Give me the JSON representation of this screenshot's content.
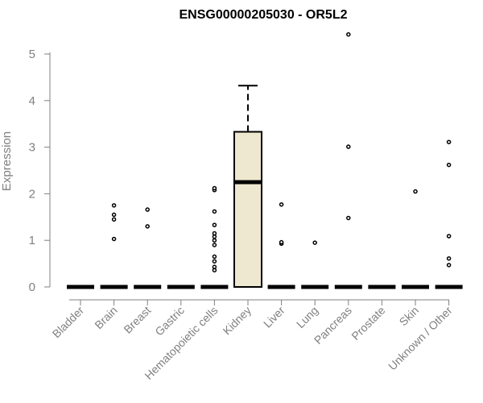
{
  "chart_data": {
    "type": "box",
    "title": "ENSG00000205030 - OR5L2",
    "xlabel": "",
    "ylabel": "Expression",
    "ylim": [
      0,
      5.5
    ],
    "yticks": [
      "0",
      "1",
      "2",
      "3",
      "4",
      "5"
    ],
    "grid": false,
    "legend": "none",
    "box_fill": "#EFE8D0",
    "categories": [
      "Bladder",
      "Brain",
      "Breast",
      "Gastric",
      "Hematopoietic cells",
      "Kidney",
      "Liver",
      "Lung",
      "Pancreas",
      "Prostate",
      "Skin",
      "Unknown / Other"
    ],
    "boxes": [
      {
        "category": "Bladder",
        "q1": 0,
        "median": 0,
        "q3": 0,
        "whisker_low": 0,
        "whisker_high": 0,
        "outliers": []
      },
      {
        "category": "Brain",
        "q1": 0,
        "median": 0,
        "q3": 0,
        "whisker_low": 0,
        "whisker_high": 0,
        "outliers": [
          1.03,
          1.45,
          1.55,
          1.75
        ]
      },
      {
        "category": "Breast",
        "q1": 0,
        "median": 0,
        "q3": 0,
        "whisker_low": 0,
        "whisker_high": 0,
        "outliers": [
          1.3,
          1.66
        ]
      },
      {
        "category": "Gastric",
        "q1": 0,
        "median": 0,
        "q3": 0,
        "whisker_low": 0,
        "whisker_high": 0,
        "outliers": []
      },
      {
        "category": "Hematopoietic cells",
        "q1": 0,
        "median": 0,
        "q3": 0,
        "whisker_low": 0,
        "whisker_high": 0,
        "outliers": [
          0.36,
          0.43,
          0.55,
          0.65,
          0.9,
          1.0,
          1.08,
          1.15,
          1.33,
          1.62,
          2.08,
          2.12
        ]
      },
      {
        "category": "Kidney",
        "q1": 0,
        "median": 2.25,
        "q3": 3.33,
        "whisker_low": 0,
        "whisker_high": 4.32,
        "outliers": []
      },
      {
        "category": "Liver",
        "q1": 0,
        "median": 0,
        "q3": 0,
        "whisker_low": 0,
        "whisker_high": 0,
        "outliers": [
          0.93,
          0.96,
          1.77
        ]
      },
      {
        "category": "Lung",
        "q1": 0,
        "median": 0,
        "q3": 0,
        "whisker_low": 0,
        "whisker_high": 0,
        "outliers": [
          0.95
        ]
      },
      {
        "category": "Pancreas",
        "q1": 0,
        "median": 0,
        "q3": 0,
        "whisker_low": 0,
        "whisker_high": 0,
        "outliers": [
          1.48,
          3.01,
          5.42
        ]
      },
      {
        "category": "Prostate",
        "q1": 0,
        "median": 0,
        "q3": 0,
        "whisker_low": 0,
        "whisker_high": 0,
        "outliers": []
      },
      {
        "category": "Skin",
        "q1": 0,
        "median": 0,
        "q3": 0,
        "whisker_low": 0,
        "whisker_high": 0,
        "outliers": [
          2.05
        ]
      },
      {
        "category": "Unknown / Other",
        "q1": 0,
        "median": 0,
        "q3": 0,
        "whisker_low": 0,
        "whisker_high": 0,
        "outliers": [
          0.47,
          0.61,
          1.09,
          2.62,
          3.11
        ]
      }
    ]
  }
}
